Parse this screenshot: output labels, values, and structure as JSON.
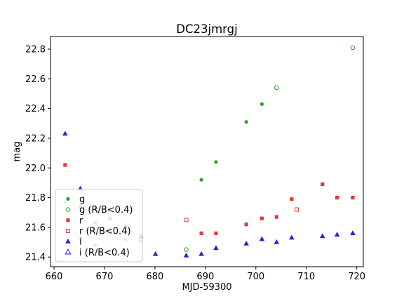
{
  "chart_data": {
    "type": "scatter",
    "title": "DC23jmrgj",
    "xlabel": "MJD-59300",
    "ylabel": "mag",
    "xlim": [
      659.3,
      721.3
    ],
    "ylim": [
      22.885,
      21.335
    ],
    "y_inverted": true,
    "xticks": [
      660,
      670,
      680,
      690,
      700,
      710,
      720
    ],
    "yticks": [
      21.4,
      21.6,
      21.8,
      22.0,
      22.2,
      22.4,
      22.6,
      22.8
    ],
    "ytick_labels": [
      "21.4",
      "21.6",
      "21.8",
      "22.0",
      "22.2",
      "22.4",
      "22.6",
      "22.8"
    ],
    "grid": false,
    "legend_position": "lower left",
    "series": [
      {
        "name": "g",
        "color": "#2ca02c",
        "marker": "circle",
        "filled": true,
        "points": [
          [
            662.2,
            21.77
          ],
          [
            665.2,
            21.52
          ],
          [
            668.2,
            21.48
          ],
          [
            671.1,
            21.44
          ],
          [
            674.2,
            21.52
          ],
          [
            689.2,
            21.92
          ],
          [
            692.1,
            22.04
          ],
          [
            698.1,
            22.31
          ],
          [
            701.2,
            22.43
          ]
        ]
      },
      {
        "name": "g (R/B<0.4)",
        "color": "#2ca02c",
        "marker": "circle",
        "filled": false,
        "points": [
          [
            686.2,
            21.45
          ],
          [
            704.1,
            22.54
          ],
          [
            719.2,
            22.81
          ]
        ]
      },
      {
        "name": "r",
        "color": "#e53935",
        "marker": "square",
        "filled": true,
        "points": [
          [
            662.2,
            22.02
          ],
          [
            665.2,
            21.74
          ],
          [
            668.2,
            21.63
          ],
          [
            671.1,
            21.57
          ],
          [
            674.2,
            21.57
          ],
          [
            677.2,
            21.51
          ],
          [
            689.2,
            21.56
          ],
          [
            692.1,
            21.56
          ],
          [
            698.1,
            21.62
          ],
          [
            701.2,
            21.66
          ],
          [
            704.1,
            21.67
          ],
          [
            707.1,
            21.79
          ],
          [
            713.2,
            21.89
          ],
          [
            716.1,
            21.8
          ],
          [
            719.2,
            21.8
          ]
        ]
      },
      {
        "name": "r (R/B<0.4)",
        "color": "#e53935",
        "marker": "square",
        "filled": false,
        "points": [
          [
            686.2,
            21.65
          ],
          [
            708.1,
            21.72
          ]
        ]
      },
      {
        "name": "i",
        "color": "#2222dd",
        "marker": "triangle",
        "filled": true,
        "points": [
          [
            662.2,
            22.23
          ],
          [
            665.2,
            21.86
          ],
          [
            668.2,
            21.73
          ],
          [
            671.1,
            21.66
          ],
          [
            674.2,
            21.61
          ],
          [
            677.2,
            21.54
          ],
          [
            680.1,
            21.42
          ],
          [
            686.2,
            21.41
          ],
          [
            689.2,
            21.42
          ],
          [
            692.1,
            21.46
          ],
          [
            698.1,
            21.49
          ],
          [
            701.2,
            21.52
          ],
          [
            704.1,
            21.5
          ],
          [
            707.1,
            21.53
          ],
          [
            713.2,
            21.54
          ],
          [
            716.1,
            21.55
          ],
          [
            719.2,
            21.56
          ]
        ]
      },
      {
        "name": "i (R/B<0.4)",
        "color": "#2222dd",
        "marker": "triangle",
        "filled": false,
        "points": []
      }
    ]
  }
}
